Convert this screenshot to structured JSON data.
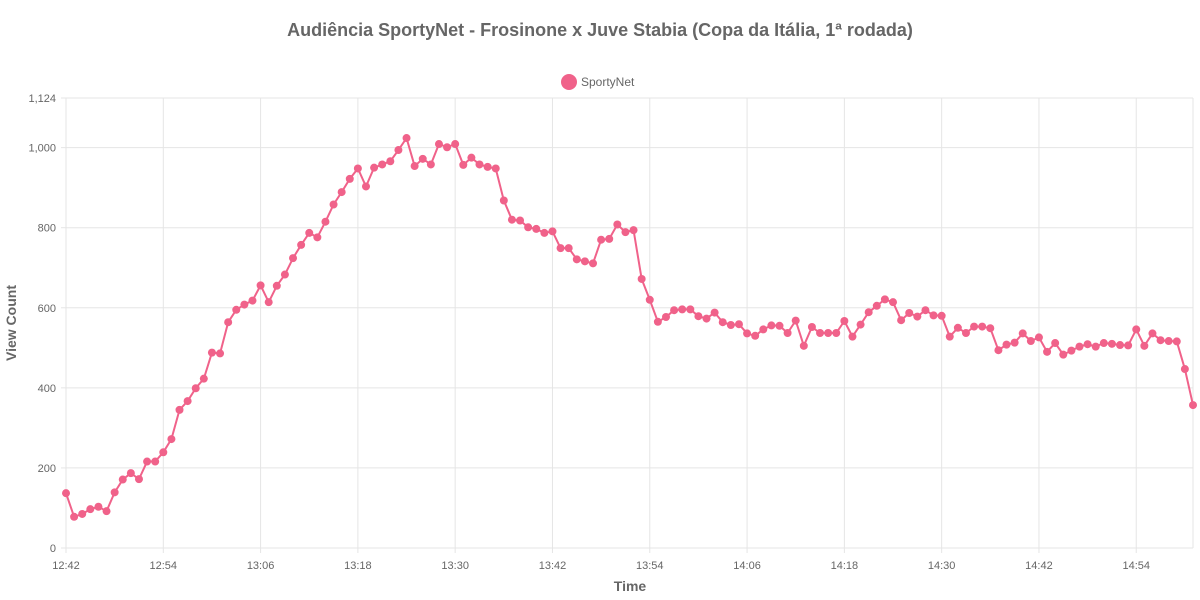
{
  "chart_data": {
    "type": "line",
    "title": "Audiência SportyNet - Frosinone x Juve Stabia (Copa da Itália, 1ª rodada)",
    "xlabel": "Time",
    "ylabel": "View Count",
    "legend": "top",
    "grid": true,
    "ylim": [
      0,
      1124
    ],
    "y_ticks": [
      "0",
      "200",
      "400",
      "600",
      "800",
      "1,000",
      "1,124"
    ],
    "x_ticks": [
      "12:42",
      "12:54",
      "13:06",
      "13:18",
      "13:30",
      "13:42",
      "13:54",
      "14:06",
      "14:18",
      "14:30",
      "14:42",
      "14:54"
    ],
    "x_start": "12:42",
    "x_end": "15:01",
    "series": [
      {
        "name": "SportyNet",
        "color": "#f0628a",
        "values": [
          137,
          78,
          85,
          97,
          103,
          92,
          139,
          171,
          187,
          172,
          216,
          216,
          239,
          272,
          345,
          367,
          399,
          423,
          488,
          486,
          564,
          595,
          608,
          618,
          656,
          614,
          655,
          683,
          724,
          757,
          787,
          776,
          815,
          858,
          889,
          922,
          948,
          903,
          950,
          958,
          966,
          994,
          1024,
          954,
          972,
          958,
          1009,
          1001,
          1009,
          957,
          975,
          958,
          952,
          948,
          868,
          820,
          818,
          801,
          797,
          787,
          791,
          749,
          749,
          721,
          716,
          711,
          770,
          772,
          808,
          789,
          794,
          672,
          620,
          565,
          577,
          594,
          596,
          596,
          579,
          573,
          588,
          564,
          557,
          559,
          536,
          530,
          546,
          556,
          555,
          537,
          568,
          505,
          552,
          537,
          537,
          537,
          567,
          528,
          558,
          589,
          605,
          621,
          614,
          569,
          587,
          578,
          594,
          581,
          580,
          528,
          550,
          537,
          553,
          553,
          549,
          494,
          508,
          513,
          536,
          517,
          526,
          490,
          512,
          483,
          493,
          503,
          509,
          503,
          512,
          510,
          507,
          506,
          546,
          505,
          536,
          519,
          517,
          516,
          447,
          357
        ]
      }
    ]
  }
}
